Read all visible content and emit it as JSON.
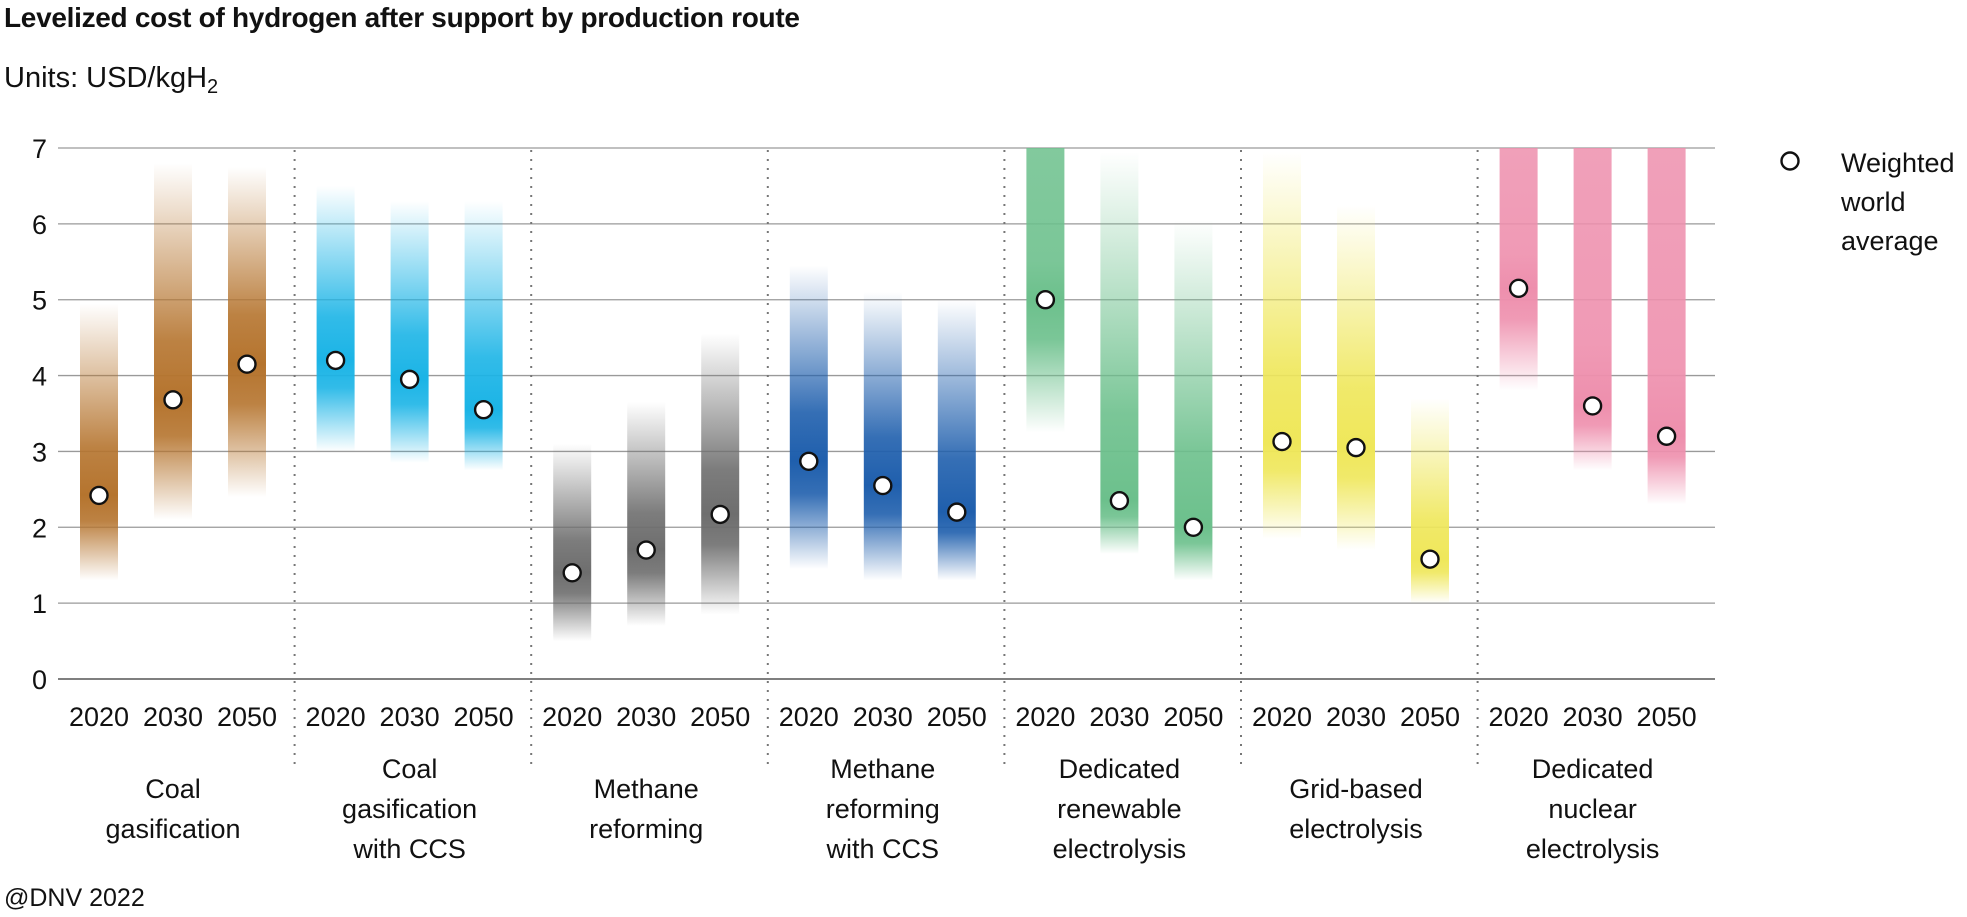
{
  "header": {
    "title": "Levelized cost of hydrogen after support by production route",
    "units_prefix": "Units: USD/kgH",
    "units_sub": "2"
  },
  "footer": {
    "credit": "@DNV 2022"
  },
  "chart_data": {
    "type": "range-dot",
    "title": "Levelized cost of hydrogen after support by production route",
    "ylabel": "USD/kgH2",
    "ylim": [
      0,
      7
    ],
    "yticks": [
      "0",
      "1",
      "2",
      "3",
      "4",
      "5",
      "6",
      "7"
    ],
    "grid": true,
    "legend": {
      "label_lines": [
        "Weighted",
        "world",
        "average"
      ],
      "position": "right"
    },
    "routes": [
      {
        "name": "Coal gasification",
        "label_lines": [
          "Coal",
          "gasification"
        ],
        "color": "#B5742E",
        "years": [
          "2020",
          "2030",
          "2050"
        ],
        "ranges": [
          [
            1.3,
            4.95
          ],
          [
            2.1,
            6.8
          ],
          [
            2.4,
            6.75
          ]
        ],
        "averages": [
          2.42,
          3.68,
          4.15
        ]
      },
      {
        "name": "Coal gasification with CCS",
        "label_lines": [
          "Coal",
          "gasification",
          "with CCS"
        ],
        "color": "#1BB4E6",
        "years": [
          "2020",
          "2030",
          "2050"
        ],
        "ranges": [
          [
            3.0,
            6.5
          ],
          [
            2.85,
            6.3
          ],
          [
            2.75,
            6.3
          ]
        ],
        "averages": [
          4.2,
          3.95,
          3.55
        ]
      },
      {
        "name": "Methane reforming",
        "label_lines": [
          "Methane",
          "reforming"
        ],
        "color": "#6E6E6E",
        "years": [
          "2020",
          "2030",
          "2050"
        ],
        "ranges": [
          [
            0.5,
            3.1
          ],
          [
            0.7,
            3.65
          ],
          [
            0.85,
            4.55
          ]
        ],
        "averages": [
          1.4,
          1.7,
          2.17
        ]
      },
      {
        "name": "Methane reforming with CCS",
        "label_lines": [
          "Methane",
          "reforming",
          "with CCS"
        ],
        "color": "#1F5FAD",
        "years": [
          "2020",
          "2030",
          "2050"
        ],
        "ranges": [
          [
            1.45,
            5.45
          ],
          [
            1.3,
            5.1
          ],
          [
            1.3,
            5.0
          ]
        ],
        "averages": [
          2.87,
          2.55,
          2.2
        ]
      },
      {
        "name": "Dedicated renewable electrolysis",
        "label_lines": [
          "Dedicated",
          "renewable",
          "electrolysis"
        ],
        "color": "#6CC08C",
        "years": [
          "2020",
          "2030",
          "2050"
        ],
        "ranges": [
          [
            3.25,
            7.0
          ],
          [
            1.65,
            6.95
          ],
          [
            1.3,
            6.05
          ]
        ],
        "averages": [
          5.0,
          2.35,
          2.0
        ]
      },
      {
        "name": "Grid-based electrolysis",
        "label_lines": [
          "Grid-based",
          "electrolysis"
        ],
        "color": "#EFE75A",
        "years": [
          "2020",
          "2030",
          "2050"
        ],
        "ranges": [
          [
            1.85,
            6.95
          ],
          [
            1.7,
            6.25
          ],
          [
            1.0,
            3.7
          ]
        ],
        "averages": [
          3.13,
          3.05,
          1.58
        ]
      },
      {
        "name": "Dedicated nuclear electrolysis",
        "label_lines": [
          "Dedicated",
          "nuclear",
          "electrolysis"
        ],
        "color": "#EE8FAD",
        "years": [
          "2020",
          "2030",
          "2050"
        ],
        "ranges": [
          [
            3.8,
            7.0
          ],
          [
            2.75,
            7.0
          ],
          [
            2.3,
            7.0
          ]
        ],
        "averages": [
          5.15,
          3.6,
          3.2
        ]
      }
    ]
  }
}
